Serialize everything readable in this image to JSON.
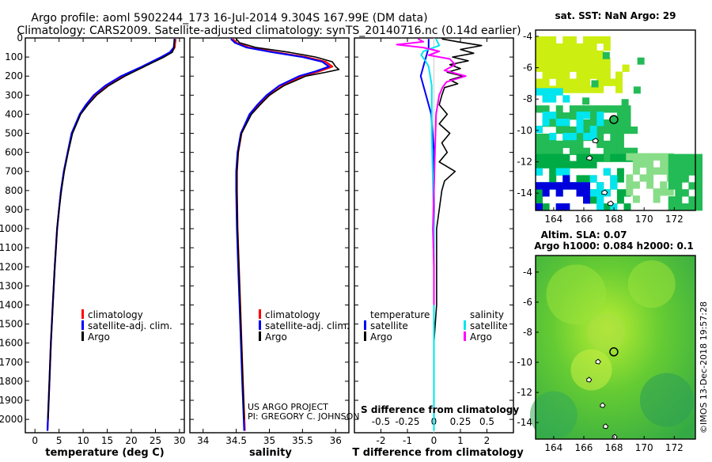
{
  "header": {
    "line1": "Argo profile: aoml 5902244_173 16-Jul-2014 9.304S 167.99E (DM data)",
    "line2": "Climatology: CARS2009. Satellite-adjusted climatology: synTS_20140716.nc (0.14d earlier)"
  },
  "credits": {
    "project": "US ARGO PROJECT",
    "pi": "PI: GREGORY C. JOHNSON",
    "imos": "©IMOS 13-Dec-2018 19:57:28"
  },
  "colors": {
    "climatology": "#ff0000",
    "satellite": "#0000ff",
    "argo": "#000000",
    "t_satellite": "#0000ff",
    "s_satellite": "#00e5ee",
    "s_argo": "#ff00ff",
    "t_argo": "#000000"
  },
  "chart_data": [
    {
      "type": "line",
      "panel": "temperature",
      "xlabel": "temperature (deg C)",
      "xlim": [
        -2,
        31
      ],
      "xticks": [
        0,
        5,
        10,
        15,
        20,
        25,
        30
      ],
      "ylim": [
        2070,
        0
      ],
      "yticks": [
        0,
        100,
        200,
        300,
        400,
        500,
        600,
        700,
        800,
        900,
        1000,
        1100,
        1200,
        1300,
        1400,
        1500,
        1600,
        1700,
        1800,
        1900,
        2000
      ],
      "legend": {
        "position": "bottom-right",
        "entries": [
          "climatology",
          "satellite-adj. clim.",
          "Argo"
        ]
      },
      "series": [
        {
          "name": "climatology",
          "pressure": [
            5,
            50,
            75,
            100,
            150,
            200,
            250,
            300,
            350,
            400,
            500,
            600,
            700,
            800,
            900,
            1000,
            1200,
            1400,
            1600,
            1800,
            2000,
            2060
          ],
          "values": [
            29.2,
            29.0,
            28.3,
            26.5,
            22.6,
            18.4,
            15.0,
            12.6,
            10.9,
            9.4,
            7.7,
            6.8,
            6.0,
            5.4,
            5.0,
            4.6,
            4.1,
            3.7,
            3.3,
            3.0,
            2.7,
            2.6
          ]
        },
        {
          "name": "satellite-adj. clim.",
          "pressure": [
            5,
            50,
            75,
            100,
            150,
            200,
            250,
            300,
            350,
            400,
            500,
            600,
            700,
            800,
            900,
            1000,
            1200,
            1400,
            1600,
            1800,
            2000,
            2060
          ],
          "values": [
            29.0,
            28.8,
            28.0,
            26.2,
            22.2,
            17.9,
            14.6,
            12.2,
            10.6,
            9.3,
            7.6,
            6.8,
            6.0,
            5.4,
            5.0,
            4.6,
            4.1,
            3.7,
            3.3,
            3.0,
            2.7,
            2.6
          ]
        },
        {
          "name": "Argo",
          "pressure": [
            5,
            50,
            75,
            100,
            150,
            200,
            250,
            300,
            350,
            400,
            500,
            600,
            700,
            800,
            900,
            1000,
            1200,
            1400,
            1600,
            1800,
            2000
          ],
          "values": [
            28.9,
            28.9,
            28.5,
            26.8,
            22.7,
            18.7,
            15.3,
            12.8,
            11.0,
            9.5,
            7.8,
            6.9,
            6.1,
            5.5,
            5.0,
            4.6,
            4.1,
            3.7,
            3.3,
            3.0,
            2.7
          ]
        }
      ]
    },
    {
      "type": "line",
      "panel": "salinity",
      "xlabel": "salinity",
      "xlim": [
        33.8,
        36.2
      ],
      "xticks": [
        34,
        34.5,
        35,
        35.5,
        36
      ],
      "ylim": [
        2070,
        0
      ],
      "legend": {
        "position": "bottom-right",
        "entries": [
          "climatology",
          "satellite-adj. clim.",
          "Argo"
        ]
      },
      "series": [
        {
          "name": "climatology",
          "pressure": [
            5,
            25,
            50,
            75,
            100,
            125,
            150,
            175,
            200,
            250,
            300,
            350,
            400,
            500,
            600,
            700,
            800,
            1000,
            1200,
            1500,
            1800,
            2060
          ],
          "values": [
            34.45,
            34.5,
            34.7,
            35.1,
            35.55,
            35.85,
            35.95,
            35.75,
            35.5,
            35.2,
            35.0,
            34.85,
            34.72,
            34.58,
            34.53,
            34.51,
            34.51,
            34.52,
            34.54,
            34.57,
            34.6,
            34.63
          ]
        },
        {
          "name": "satellite-adj. clim.",
          "pressure": [
            5,
            25,
            50,
            75,
            100,
            125,
            150,
            175,
            200,
            250,
            300,
            350,
            400,
            500,
            600,
            700,
            800,
            1000,
            1200,
            1500,
            1800,
            2060
          ],
          "values": [
            34.42,
            34.48,
            34.66,
            35.05,
            35.5,
            35.8,
            35.9,
            35.7,
            35.45,
            35.15,
            34.96,
            34.82,
            34.7,
            34.57,
            34.52,
            34.5,
            34.5,
            34.51,
            34.53,
            34.56,
            34.59,
            34.62
          ]
        },
        {
          "name": "Argo",
          "pressure": [
            5,
            25,
            50,
            75,
            100,
            125,
            150,
            165,
            180,
            200,
            250,
            300,
            350,
            400,
            500,
            600,
            700,
            800,
            1000,
            1200,
            1500,
            1800,
            2000
          ],
          "values": [
            34.5,
            34.55,
            34.8,
            35.3,
            35.7,
            35.95,
            36.0,
            36.05,
            35.85,
            35.55,
            35.22,
            35.0,
            34.86,
            34.73,
            34.58,
            34.53,
            34.51,
            34.51,
            34.52,
            34.54,
            34.57,
            34.6,
            34.62
          ]
        }
      ]
    },
    {
      "type": "line",
      "panel": "difference",
      "xlabel_top": "S difference from climatology",
      "xlabel": "T difference from climatology",
      "xlim_t": [
        -3,
        3
      ],
      "xticks_t": [
        -2,
        -1,
        0,
        1,
        2
      ],
      "xlim_s": [
        -0.75,
        0.75
      ],
      "xticks_s": [
        "-0.5",
        "-0.25",
        "0",
        "0.25",
        "0.5"
      ],
      "ylim": [
        2070,
        0
      ],
      "legend_left": {
        "title": "temperature",
        "entries": [
          "satellite",
          "Argo"
        ]
      },
      "legend_right": {
        "title": "salinity",
        "entries": [
          "satellite",
          "Argo"
        ]
      },
      "series": [
        {
          "name": "T satellite",
          "color_key": "t_satellite",
          "pressure": [
            5,
            50,
            100,
            150,
            200,
            300,
            400,
            600,
            800,
            1000,
            1400,
            2000
          ],
          "values": [
            -0.2,
            -0.2,
            -0.3,
            -0.4,
            -0.5,
            -0.3,
            -0.1,
            0.0,
            0.0,
            0.0,
            0.0,
            0.0
          ]
        },
        {
          "name": "T Argo",
          "color_key": "t_argo",
          "pressure": [
            5,
            20,
            40,
            60,
            80,
            100,
            120,
            140,
            160,
            180,
            200,
            220,
            240,
            260,
            300,
            350,
            400,
            450,
            500,
            550,
            600,
            650,
            700,
            750,
            800,
            900,
            1000,
            1200,
            1400,
            1600,
            1800,
            2000
          ],
          "values": [
            0.3,
            0.9,
            1.8,
            1.0,
            1.5,
            0.7,
            1.3,
            0.6,
            1.0,
            0.5,
            1.1,
            0.6,
            0.9,
            0.4,
            0.3,
            0.2,
            0.5,
            0.2,
            0.6,
            0.3,
            0.5,
            0.2,
            0.8,
            0.4,
            0.3,
            0.2,
            0.1,
            0.1,
            0.1,
            0.0,
            0.0,
            0.0
          ]
        },
        {
          "name": "S satellite",
          "color_key": "s_satellite",
          "pressure": [
            5,
            40,
            70,
            90,
            120,
            150,
            250,
            500,
            1000,
            2060
          ],
          "values": [
            0.02,
            0.05,
            -0.1,
            -0.12,
            -0.08,
            -0.05,
            -0.02,
            -0.02,
            0.0,
            0.0
          ]
        },
        {
          "name": "S Argo",
          "color_key": "s_argo",
          "pressure": [
            5,
            20,
            35,
            50,
            70,
            90,
            110,
            140,
            170,
            200,
            230,
            260,
            300,
            400,
            600,
            800,
            1000,
            1200,
            1400
          ],
          "values": [
            -0.15,
            -0.1,
            -0.35,
            -0.1,
            0.05,
            -0.05,
            0.15,
            0.2,
            0.1,
            0.3,
            0.12,
            0.08,
            0.05,
            0.02,
            0.01,
            0.0,
            -0.01,
            0.0,
            0.0
          ]
        }
      ]
    },
    {
      "type": "heatmap",
      "panel": "sst_map",
      "title": "sat. SST: NaN Argo: 29",
      "xlim": [
        162.8,
        173.4
      ],
      "xticks": [
        164,
        166,
        168,
        170,
        172
      ],
      "ylim": [
        -15.1,
        -3.6
      ],
      "yticks": [
        -4,
        -6,
        -8,
        -10,
        -12,
        -14
      ],
      "float_position": [
        167.99,
        -9.304
      ]
    },
    {
      "type": "heatmap",
      "panel": "sla_map",
      "title": "Altim. SLA: 0.07",
      "subtitle": "Argo h1000: 0.084 h2000: 0.1",
      "xlim": [
        162.8,
        173.4
      ],
      "xticks": [
        164,
        166,
        168,
        170,
        172
      ],
      "ylim": [
        -15.1,
        -2.9
      ],
      "yticks": [
        -4,
        -6,
        -8,
        -10,
        -12,
        -14
      ],
      "float_position": [
        167.99,
        -9.304
      ]
    }
  ]
}
